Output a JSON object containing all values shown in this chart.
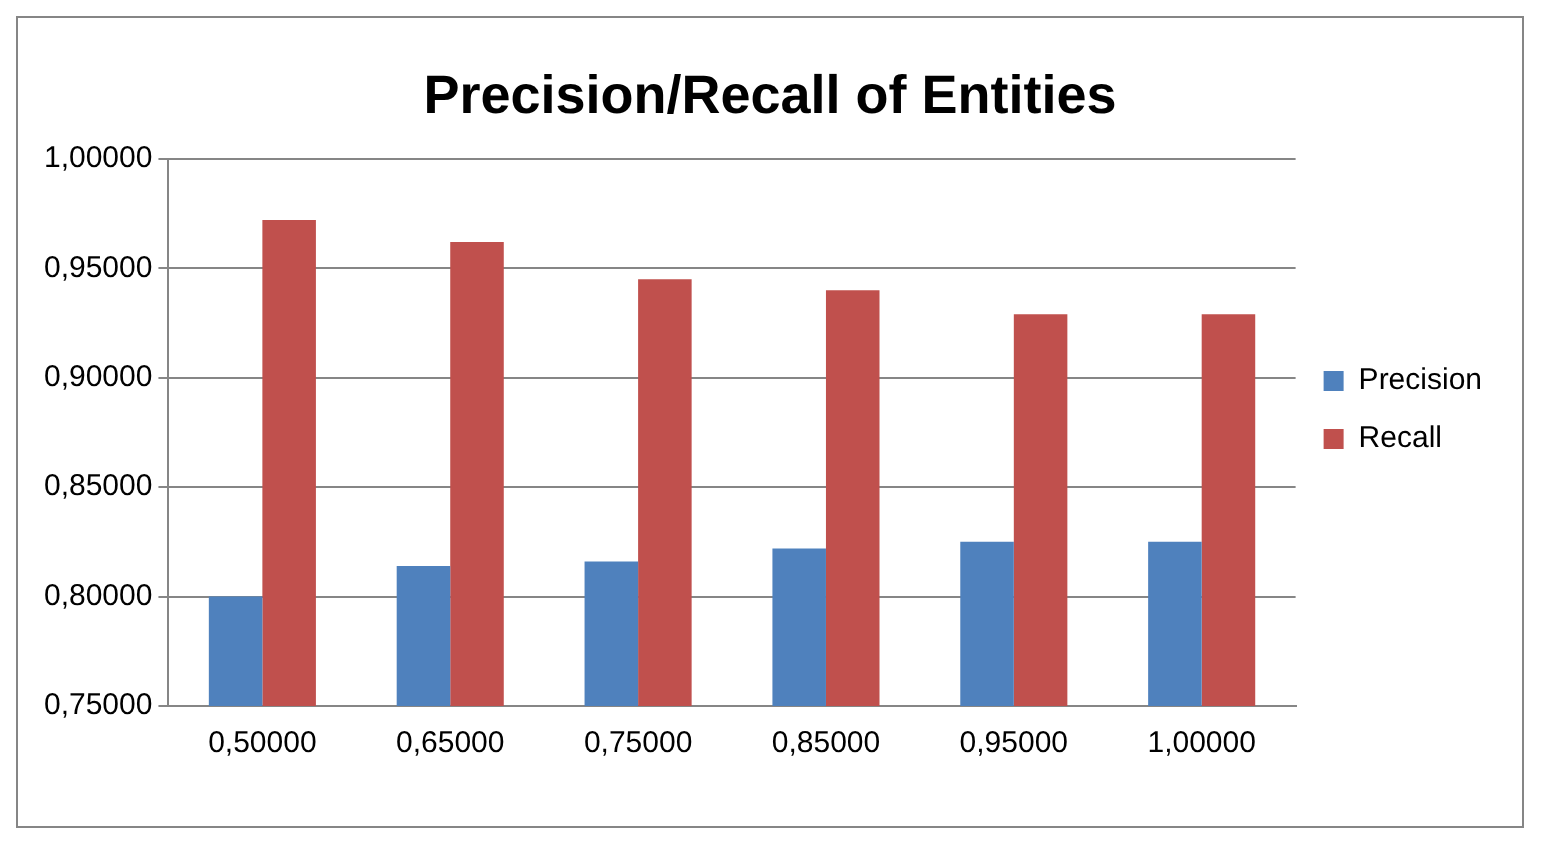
{
  "chart_data": {
    "type": "bar",
    "title": "Precision/Recall of Entities",
    "categories": [
      "0,50000",
      "0,65000",
      "0,75000",
      "0,85000",
      "0,95000",
      "1,00000"
    ],
    "series": [
      {
        "name": "Precision",
        "color": "#4f81bd",
        "values": [
          0.8,
          0.814,
          0.816,
          0.822,
          0.825,
          0.825
        ]
      },
      {
        "name": "Recall",
        "color": "#c0504d",
        "values": [
          0.972,
          0.962,
          0.945,
          0.94,
          0.929,
          0.929
        ]
      }
    ],
    "ylim": [
      0.75,
      1
    ],
    "yticks": [
      {
        "value": 0.75,
        "label": "0,75000"
      },
      {
        "value": 0.8,
        "label": "0,80000"
      },
      {
        "value": 0.85,
        "label": "0,85000"
      },
      {
        "value": 0.9,
        "label": "0,90000"
      },
      {
        "value": 0.95,
        "label": "0,95000"
      },
      {
        "value": 1,
        "label": "1,00000"
      }
    ],
    "grid": "y",
    "legend": "right"
  }
}
